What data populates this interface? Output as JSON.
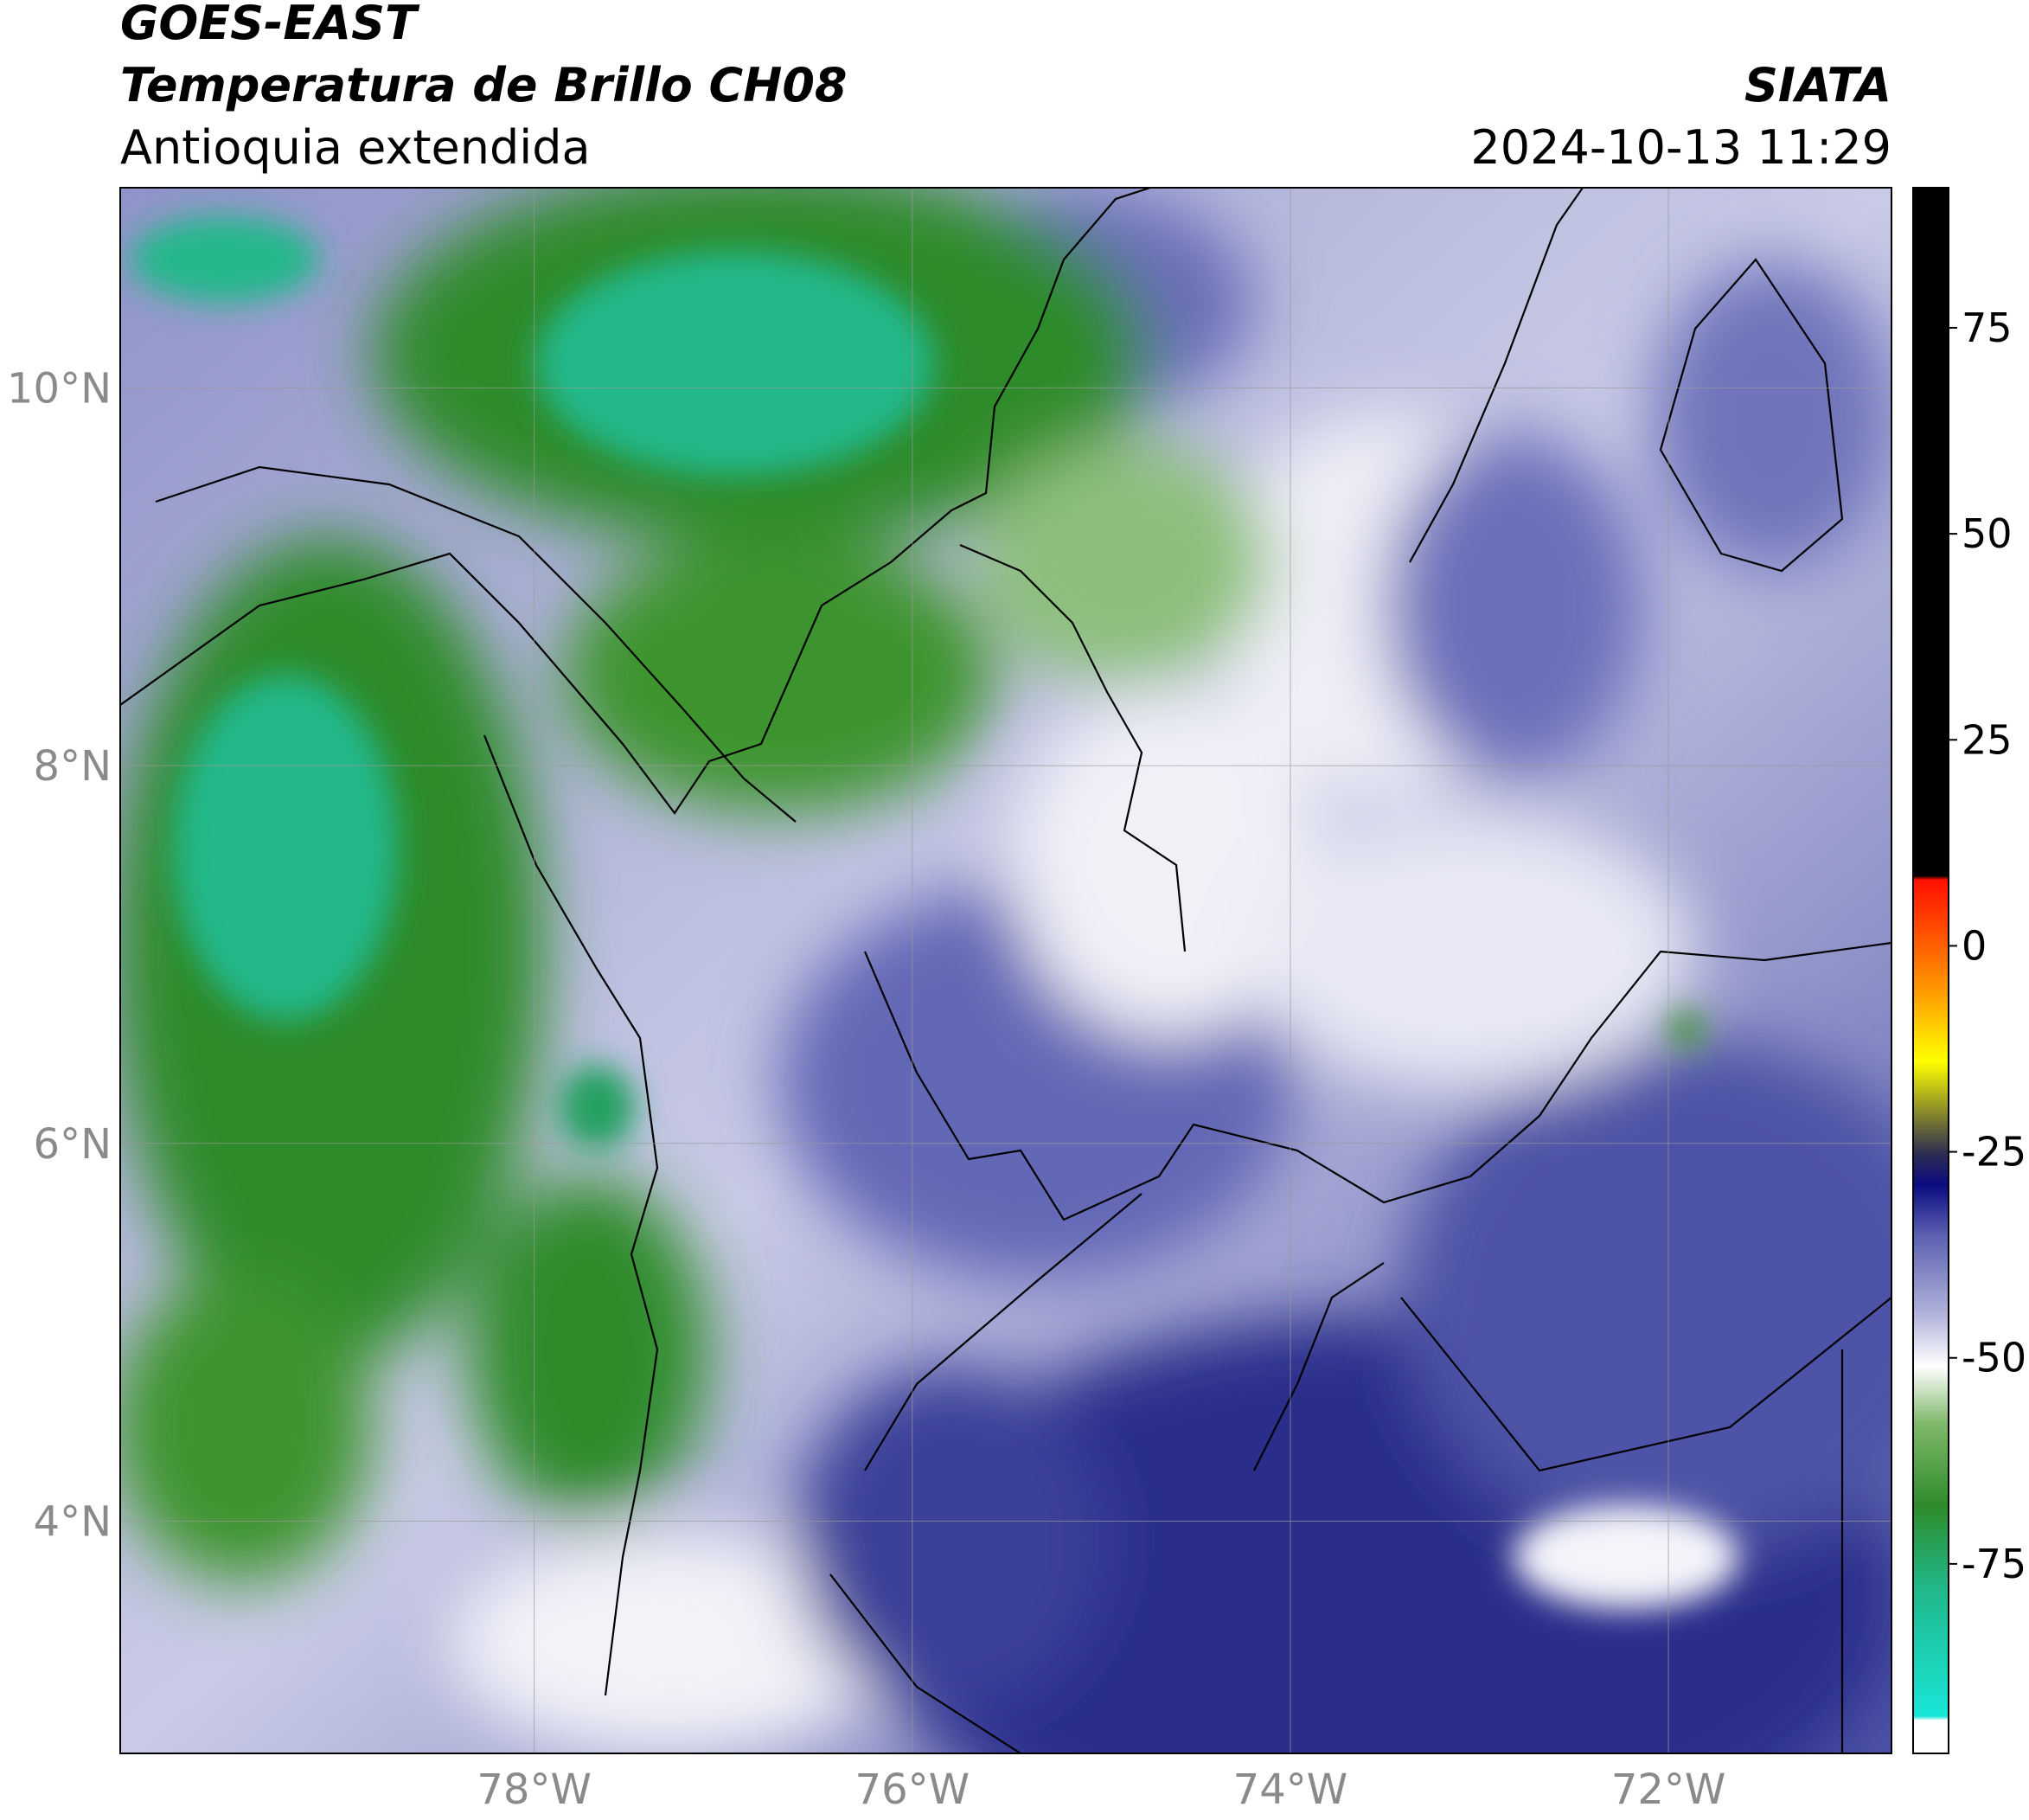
{
  "header": {
    "title": "GOES-EAST",
    "subtitle": "Temperatura de Brillo CH08",
    "region": "Antioquia extendida",
    "source": "SIATA",
    "datetime": "2024-10-13 11:29"
  },
  "map": {
    "xlim": [
      -80.19,
      -70.82
    ],
    "ylim": [
      2.77,
      11.06
    ],
    "xticks": [
      {
        "value": -78,
        "label": "78°W"
      },
      {
        "value": -76,
        "label": "76°W"
      },
      {
        "value": -74,
        "label": "74°W"
      },
      {
        "value": -72,
        "label": "72°W"
      }
    ],
    "yticks": [
      {
        "value": 10,
        "label": "10°N"
      },
      {
        "value": 8,
        "label": "8°N"
      },
      {
        "value": 6,
        "label": "6°N"
      },
      {
        "value": 4,
        "label": "4°N"
      }
    ],
    "grid": true
  },
  "colorbar": {
    "lim": [
      -98,
      92
    ],
    "ticks": [
      75,
      50,
      25,
      0,
      -25,
      -50,
      -75
    ],
    "stops": [
      {
        "value": -98,
        "color": "#ffffff"
      },
      {
        "value": -94,
        "color": "#ffffff"
      },
      {
        "value": -93.5,
        "color": "#19e6d8"
      },
      {
        "value": -78,
        "color": "#20b88a"
      },
      {
        "value": -68,
        "color": "#2e8b2a"
      },
      {
        "value": -58,
        "color": "#7fb86a"
      },
      {
        "value": -51,
        "color": "#ffffff"
      },
      {
        "value": -45,
        "color": "#b4b6dc"
      },
      {
        "value": -35,
        "color": "#5a5fb0"
      },
      {
        "value": -29,
        "color": "#0a0a80"
      },
      {
        "value": -25,
        "color": "#303050"
      },
      {
        "value": -21,
        "color": "#7a7a30"
      },
      {
        "value": -14,
        "color": "#ffff00"
      },
      {
        "value": -6,
        "color": "#ffa000"
      },
      {
        "value": 0,
        "color": "#ff6000"
      },
      {
        "value": 8,
        "color": "#ff1000"
      },
      {
        "value": 8.5,
        "color": "#000000"
      },
      {
        "value": 92,
        "color": "#000000"
      }
    ]
  }
}
